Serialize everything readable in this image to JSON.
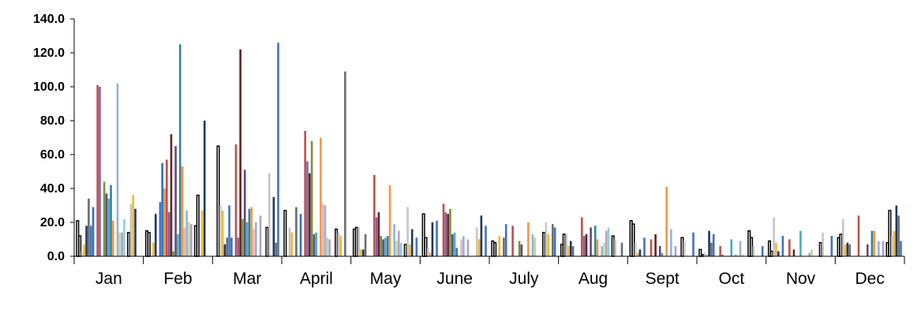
{
  "chart_data": {
    "type": "bar",
    "title": "",
    "xlabel": "",
    "ylabel": "",
    "ylim": [
      0,
      140
    ],
    "y_ticks": [
      "0.0",
      "20.0",
      "40.0",
      "60.0",
      "80.0",
      "100.0",
      "120.0",
      "140.0"
    ],
    "grid": false,
    "legend": "none",
    "categories": [
      "Jan",
      "Feb",
      "Mar",
      "April",
      "May",
      "June",
      "July",
      "Aug",
      "Sept",
      "Oct",
      "Nov",
      "Dec"
    ],
    "colors": [
      "#ffffff",
      "#ffffff",
      "#c6c6c6",
      "#f5b82e",
      "#1f3864",
      "#6d6d6d",
      "#4472c4",
      "#2e75b6",
      "#f08c3c",
      "#c0504d",
      "#8064a2",
      "#632523",
      "#77933c",
      "#604a7b",
      "#4bacc6",
      "#31849b",
      "#f79646",
      "#e6b9b8",
      "#95b3d7",
      "#c3d69b",
      "#b2a1c7",
      "#93cddd"
    ],
    "series": [
      {
        "values": [
          21,
          15,
          0,
          27,
          16,
          25,
          9,
          7,
          21,
          4,
          9,
          11
        ]
      },
      {
        "values": [
          12,
          14,
          65,
          0,
          17,
          11,
          8,
          13,
          19,
          1,
          3,
          13
        ]
      },
      {
        "values": [
          3,
          0,
          30,
          17,
          17,
          5,
          0,
          13,
          8,
          2,
          23,
          22
        ]
      },
      {
        "values": [
          7,
          8,
          27,
          14,
          4,
          2,
          12,
          6,
          2,
          1,
          8,
          7
        ]
      },
      {
        "values": [
          18,
          25,
          7,
          0,
          4,
          20,
          0,
          9,
          4,
          15,
          3,
          8
        ]
      },
      {
        "values": [
          34,
          0,
          11,
          29,
          13,
          0,
          11,
          6,
          0,
          8,
          0,
          7
        ]
      },
      {
        "values": [
          18,
          32,
          30,
          0,
          0,
          21,
          19,
          0,
          11,
          13,
          12,
          0
        ]
      },
      {
        "values": [
          29,
          55,
          11,
          25,
          0,
          0,
          0,
          0,
          0,
          0,
          0,
          0
        ]
      },
      {
        "values": [
          0,
          40,
          0,
          0,
          0,
          0,
          0,
          0,
          0,
          0,
          0,
          0
        ]
      },
      {
        "values": [
          101,
          57,
          66,
          74,
          48,
          31,
          18,
          23,
          10,
          6,
          10,
          24
        ]
      },
      {
        "values": [
          100,
          26,
          11,
          56,
          23,
          26,
          0,
          12,
          0,
          1,
          0,
          0
        ]
      },
      {
        "values": [
          0,
          72,
          122,
          49,
          26,
          25,
          0,
          13,
          13,
          0,
          4,
          0
        ]
      },
      {
        "values": [
          44,
          3,
          22,
          68,
          12,
          28,
          9,
          0,
          0,
          0,
          0,
          0
        ]
      },
      {
        "values": [
          37,
          65,
          51,
          13,
          10,
          13,
          7,
          17,
          6,
          0,
          0,
          7
        ]
      },
      {
        "values": [
          34,
          13,
          20,
          14,
          11,
          14,
          0,
          1,
          2,
          10,
          15,
          0
        ]
      },
      {
        "values": [
          42,
          125,
          28,
          0,
          12,
          5,
          0,
          18,
          0,
          0,
          0,
          15
        ]
      },
      {
        "values": [
          21,
          53,
          29,
          70,
          42,
          0,
          20,
          10,
          41,
          1,
          0,
          15
        ]
      },
      {
        "values": [
          0,
          17,
          16,
          31,
          0,
          10,
          0,
          0,
          0,
          0,
          0,
          0
        ]
      },
      {
        "values": [
          102,
          27,
          20,
          30,
          19,
          12,
          13,
          6,
          16,
          9,
          2,
          9
        ]
      },
      {
        "values": [
          14,
          20,
          0,
          11,
          9,
          0,
          11,
          8,
          0,
          1,
          4,
          0
        ]
      },
      {
        "values": [
          14,
          19,
          24,
          10,
          15,
          10,
          0,
          15,
          6,
          0,
          0,
          9
        ]
      },
      {
        "values": [
          22,
          0,
          0,
          0,
          8,
          0,
          0,
          17,
          0,
          0,
          0,
          0
        ]
      },
      {
        "values": [
          0,
          18,
          0,
          0,
          0,
          0,
          0,
          0,
          0,
          15,
          0,
          8
        ]
      },
      {
        "values": [
          14,
          36,
          17,
          16,
          7,
          0,
          14,
          12,
          11,
          11,
          8,
          27
        ]
      },
      {
        "values": [
          31,
          0,
          49,
          14,
          29,
          17,
          20,
          10,
          9,
          6,
          14,
          12
        ]
      },
      {
        "values": [
          36,
          27,
          0,
          12,
          7,
          10,
          13,
          0,
          0,
          0,
          0,
          15
        ]
      },
      {
        "values": [
          28,
          80,
          35,
          0,
          16,
          24,
          0,
          0,
          0,
          0,
          0,
          30
        ]
      },
      {
        "values": [
          0,
          0,
          8,
          109,
          0,
          0,
          19,
          8,
          0,
          0,
          0,
          24
        ]
      },
      {
        "values": [
          0,
          0,
          126,
          0,
          11,
          18,
          17,
          0,
          14,
          6,
          12,
          9
        ]
      }
    ]
  }
}
